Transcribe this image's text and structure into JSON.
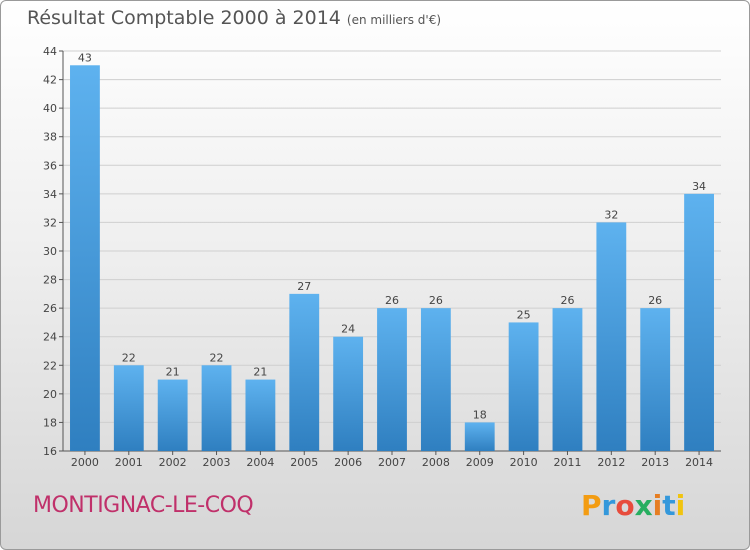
{
  "header": {
    "title": "Résultat Comptable 2000 à 2014",
    "subtitle": "(en milliers d'€)"
  },
  "footer": {
    "commune": "MONTIGNAC-LE-COQ",
    "brand": "Proxiti"
  },
  "colors": {
    "bar_top": "#5eb2ef",
    "bar_bottom": "#2f7fc0",
    "commune_text": "#c0306a",
    "brand_letters": [
      "#f39c12",
      "#3498db",
      "#e74c3c",
      "#27ae60",
      "#e67e22",
      "#3498db",
      "#f1c40f"
    ]
  },
  "chart_data": {
    "type": "bar",
    "title": "Résultat Comptable 2000 à 2014",
    "subtitle": "(en milliers d'€)",
    "xlabel": "",
    "ylabel": "",
    "categories": [
      "2000",
      "2001",
      "2002",
      "2003",
      "2004",
      "2005",
      "2006",
      "2007",
      "2008",
      "2009",
      "2010",
      "2011",
      "2012",
      "2013",
      "2014"
    ],
    "values": [
      43,
      22,
      21,
      22,
      21,
      27,
      24,
      26,
      26,
      18,
      25,
      26,
      32,
      26,
      34
    ],
    "ylim": [
      16,
      44
    ],
    "yticks": [
      16,
      18,
      20,
      22,
      24,
      26,
      28,
      30,
      32,
      34,
      36,
      38,
      40,
      42,
      44
    ],
    "grid": true,
    "legend": "none",
    "data_labels": true
  }
}
